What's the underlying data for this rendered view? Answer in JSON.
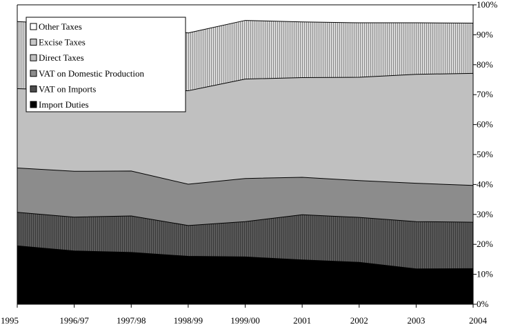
{
  "chart_data": {
    "type": "area",
    "stacked": true,
    "categories": [
      "1995",
      "1996/97",
      "1997/98",
      "1998/99",
      "1999/00",
      "2001",
      "2002",
      "2003",
      "2004"
    ],
    "ylim": [
      0,
      100
    ],
    "y_unit": "%",
    "y_axis_side": "right",
    "y_ticks": [
      "0%",
      "10%",
      "20%",
      "30%",
      "40%",
      "50%",
      "60%",
      "70%",
      "80%",
      "90%",
      "100%"
    ],
    "grid": false,
    "legend_placement": "top-left",
    "series": [
      {
        "name": "Import Duties",
        "values": [
          19.5,
          17.8,
          17.3,
          16.0,
          15.8,
          14.8,
          14.0,
          11.8,
          11.9
        ],
        "color": "#000000"
      },
      {
        "name": "VAT on Imports",
        "values": [
          11.2,
          11.3,
          12.2,
          10.3,
          11.8,
          15.1,
          15.0,
          15.8,
          15.5
        ],
        "color": "#4d4d4d"
      },
      {
        "name": "VAT on Domestic Production",
        "values": [
          14.8,
          15.3,
          15.0,
          13.8,
          14.4,
          12.5,
          12.3,
          12.8,
          12.3
        ],
        "color": "#8c8c8c"
      },
      {
        "name": "Direct Taxes",
        "values": [
          26.5,
          27.0,
          27.0,
          31.2,
          33.2,
          33.3,
          34.5,
          36.4,
          37.4
        ],
        "color": "#c0c0c0"
      },
      {
        "name": "Excise Taxes",
        "values": [
          22.4,
          22.1,
          21.8,
          19.3,
          19.6,
          18.6,
          18.2,
          17.2,
          16.8
        ],
        "color": "#a9a9a9"
      },
      {
        "name": "Other Taxes",
        "values": [
          5.6,
          6.5,
          6.7,
          9.4,
          5.2,
          5.7,
          6.0,
          6.0,
          6.1
        ],
        "color": "#ffffff"
      }
    ]
  }
}
